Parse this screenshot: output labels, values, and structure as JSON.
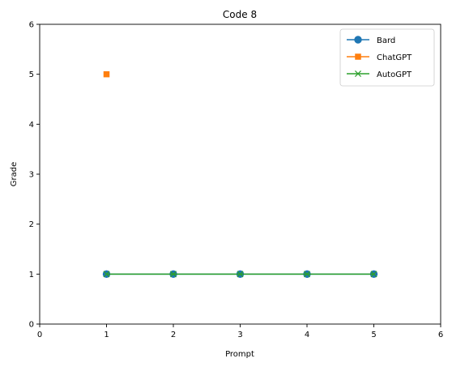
{
  "chart_data": {
    "type": "line",
    "title": "Code 8",
    "xlabel": "Prompt",
    "ylabel": "Grade",
    "xlim": [
      0,
      6
    ],
    "ylim": [
      0,
      6
    ],
    "xticks": [
      0,
      1,
      2,
      3,
      4,
      5,
      6
    ],
    "yticks": [
      0,
      1,
      2,
      3,
      4,
      5,
      6
    ],
    "grid": false,
    "legend_position": "top-right",
    "series": [
      {
        "name": "Bard",
        "color": "#1f77b4",
        "marker": "circle",
        "line": true,
        "x": [
          1,
          2,
          3,
          4,
          5
        ],
        "y": [
          1,
          1,
          1,
          1,
          1
        ]
      },
      {
        "name": "ChatGPT",
        "color": "#ff7f0e",
        "marker": "square",
        "line": false,
        "x": [
          1
        ],
        "y": [
          5
        ]
      },
      {
        "name": "AutoGPT",
        "color": "#2ca02c",
        "marker": "x",
        "line": true,
        "x": [
          1,
          2,
          3,
          4,
          5
        ],
        "y": [
          1,
          1,
          1,
          1,
          1
        ]
      }
    ]
  }
}
